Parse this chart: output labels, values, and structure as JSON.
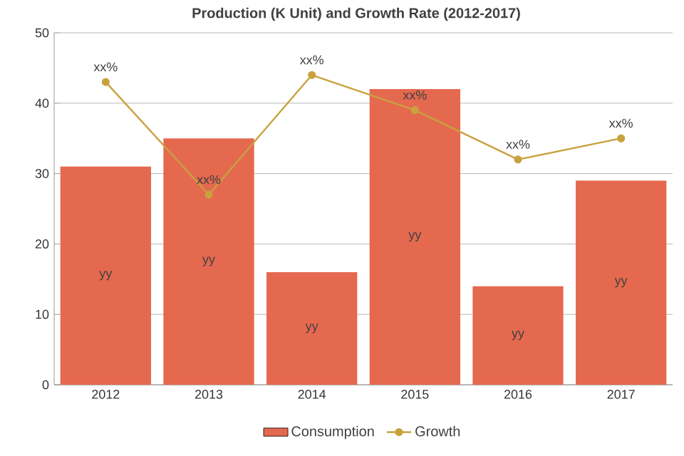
{
  "chart_data": {
    "type": "bar",
    "title": "Production (K Unit) and Growth Rate (2012-2017)",
    "categories": [
      "2012",
      "2013",
      "2014",
      "2015",
      "2016",
      "2017"
    ],
    "series": [
      {
        "name": "Consumption",
        "color": "#e5694f",
        "values": [
          31,
          35,
          16,
          42,
          14,
          29
        ],
        "value_labels": [
          "yy",
          "yy",
          "yy",
          "yy",
          "yy",
          "yy"
        ]
      },
      {
        "name": "Growth",
        "type": "line",
        "color": "#c9a13f",
        "marker": "circle",
        "values": [
          43,
          27,
          44,
          39,
          32,
          35
        ],
        "value_labels": [
          "xx%",
          "xx%",
          "xx%",
          "xx%",
          "xx%",
          "xx%"
        ]
      }
    ],
    "ylim": [
      0,
      50
    ],
    "yticks": [
      0,
      10,
      20,
      30,
      40,
      50
    ],
    "grid": "y",
    "legend": "bottom"
  }
}
